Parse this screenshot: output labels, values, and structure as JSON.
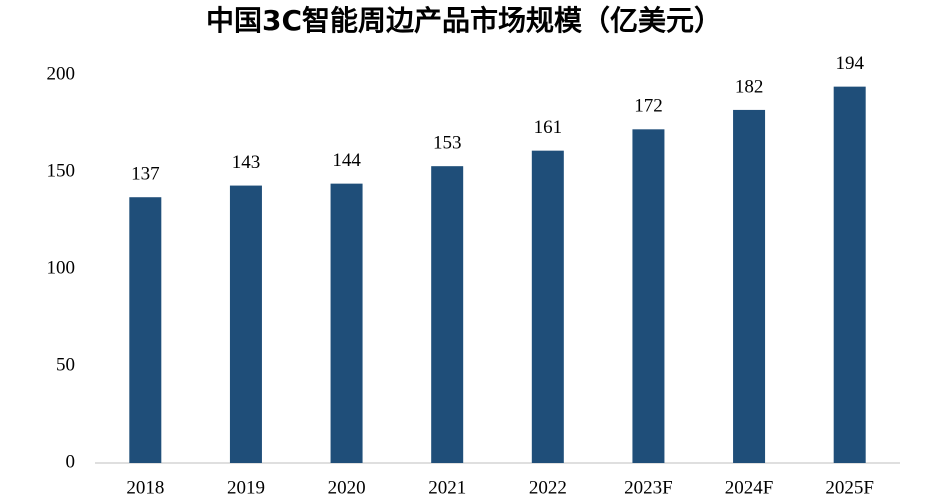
{
  "chart_data": {
    "type": "bar",
    "title": "中国3C智能周边产品市场规模（亿美元）",
    "categories": [
      "2018",
      "2019",
      "2020",
      "2021",
      "2022",
      "2023F",
      "2024F",
      "2025F"
    ],
    "values": [
      137,
      143,
      144,
      153,
      161,
      172,
      182,
      194
    ],
    "color": "#1f4e79",
    "ylim": [
      0,
      200
    ],
    "yticks": [
      0,
      50,
      100,
      150,
      200
    ],
    "grid": false
  }
}
